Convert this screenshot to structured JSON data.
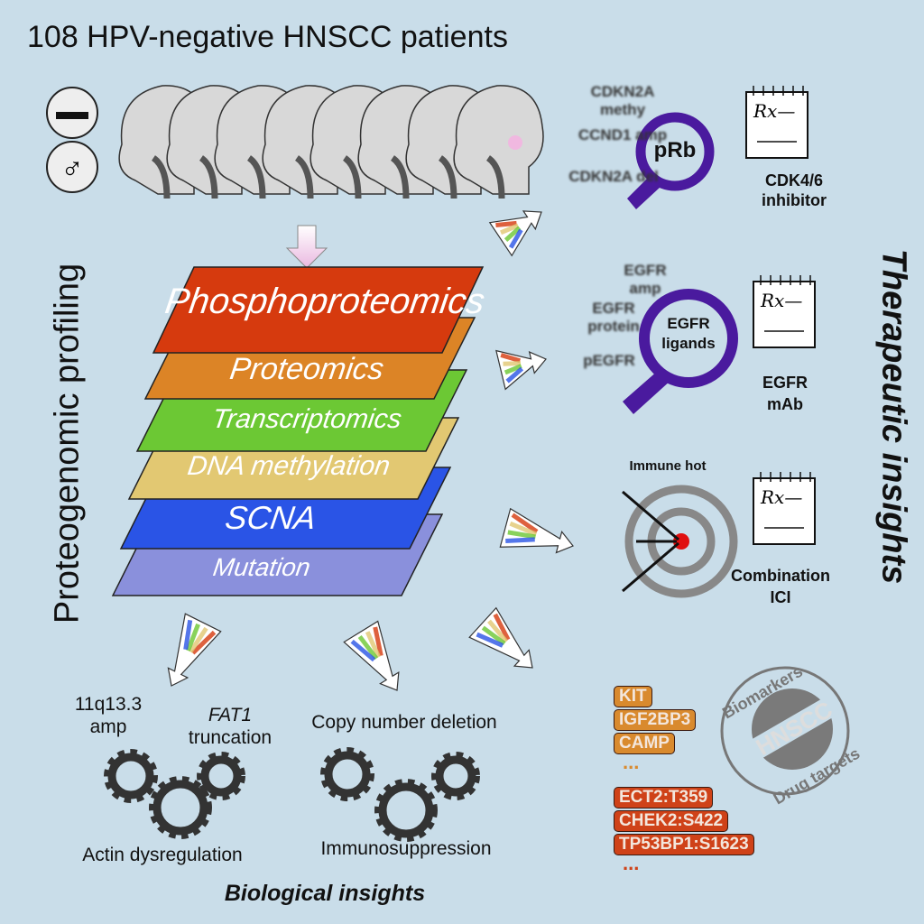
{
  "title": "108 HPV-negative HNSCC patients",
  "left_label": "Proteogenomic profiling",
  "right_label": "Therapeutic insights",
  "bottom_label": "Biological insights",
  "layers": [
    {
      "label": "Phosphoproteomics",
      "color": "#d63a0e"
    },
    {
      "label": "Proteomics",
      "color": "#dc8426"
    },
    {
      "label": "Transcriptomics",
      "color": "#6cc834"
    },
    {
      "label": "DNA methylation",
      "color": "#e2c872"
    },
    {
      "label": "SCNA",
      "color": "#2a54e6"
    },
    {
      "label": "Mutation",
      "color": "#8a90dc"
    }
  ],
  "icons": {
    "smoking": "cigarette-icon",
    "sex": "male-symbol-icon"
  },
  "therapy": [
    {
      "markers": [
        "CDKN2A methy",
        "CCND1 amp",
        "CDKN2A del"
      ],
      "lens": "pRb",
      "rx": "Rx—",
      "drug": [
        "CDK4/6",
        "inhibitor"
      ]
    },
    {
      "markers": [
        "EGFR amp",
        "EGFR protein",
        "pEGFR"
      ],
      "lens": [
        "EGFR",
        "ligands"
      ],
      "rx": "Rx—",
      "drug": [
        "EGFR",
        "mAb"
      ]
    },
    {
      "target_label": "Immune hot",
      "rx": "Rx—",
      "drug": [
        "Combination",
        "ICI"
      ]
    }
  ],
  "biomarkers": {
    "protein": [
      "KIT",
      "IGF2BP3",
      "CAMP"
    ],
    "phospho": [
      "ECT2:T359",
      "CHEK2:S422",
      "TP53BP1:S1623"
    ],
    "more": "...",
    "stamp": {
      "top": "Biomarkers",
      "center": "HNSCC",
      "bottom": "Drug targets"
    }
  },
  "bio": {
    "left_top": [
      "11q13.3",
      "amp"
    ],
    "left_top2": [
      "FAT1",
      "truncation"
    ],
    "left_bottom": "Actin dysregulation",
    "right_top": "Copy number deletion",
    "right_bottom": "Immunosuppression"
  },
  "colors": {
    "background": "#c9dde9",
    "lens": "#4a1a9e",
    "target": "#888888",
    "bullseye": "#e01010"
  }
}
